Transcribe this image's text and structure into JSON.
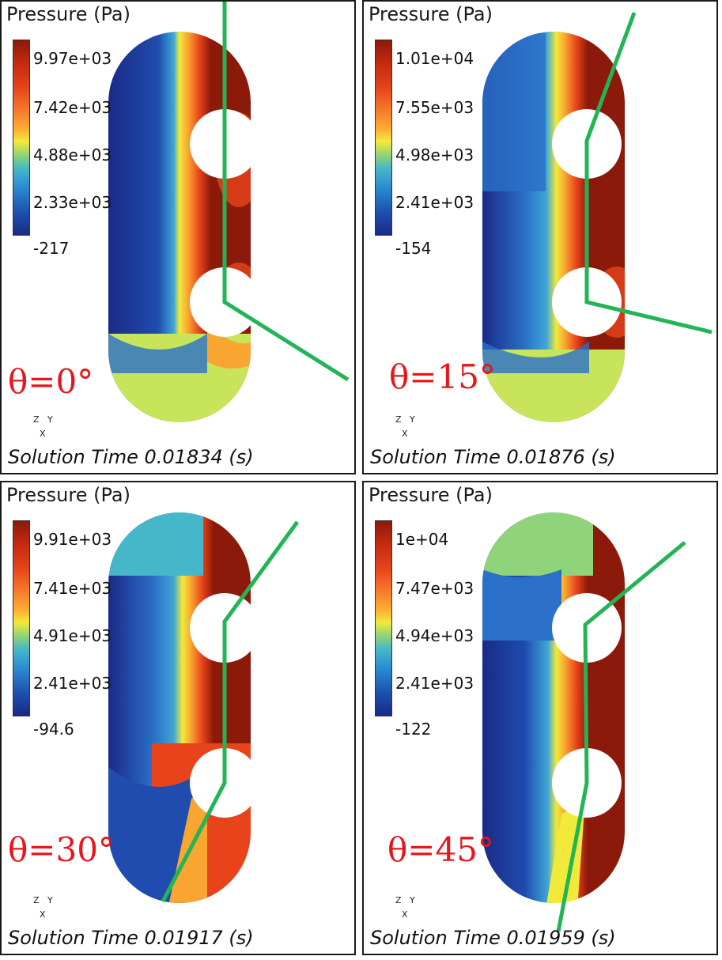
{
  "colors": {
    "dark_red": "#8b1a0a",
    "red": "#e4431b",
    "orange": "#f77a2a",
    "yellow": "#f2ea3a",
    "light_green": "#c7e45a",
    "cyan": "#45b7c8",
    "blue": "#2a6fc8",
    "navy": "#1a2a86",
    "section_line": "#22b455",
    "theta_label": "#e8151b"
  },
  "panels": [
    {
      "title": "Pressure (Pa)",
      "ticks": [
        "9.97e+03",
        "7.42e+03",
        "4.88e+03",
        "2.33e+03",
        "-217"
      ],
      "theta": "θ=0°",
      "time": "Solution Time 0.01834 (s)",
      "axis": {
        "z": "Z",
        "y": "Y",
        "x": "X"
      }
    },
    {
      "title": "Pressure (Pa)",
      "ticks": [
        "1.01e+04",
        "7.55e+03",
        "4.98e+03",
        "2.41e+03",
        "-154"
      ],
      "theta": "θ=15°",
      "time": "Solution Time 0.01876 (s)",
      "axis": {
        "z": "Z",
        "y": "Y",
        "x": "X"
      }
    },
    {
      "title": "Pressure (Pa)",
      "ticks": [
        "9.91e+03",
        "7.41e+03",
        "4.91e+03",
        "2.41e+03",
        "-94.6"
      ],
      "theta": "θ=30°",
      "time": "Solution Time 0.01917 (s)",
      "axis": {
        "z": "Z",
        "y": "Y",
        "x": "X"
      }
    },
    {
      "title": "Pressure (Pa)",
      "ticks": [
        "1e+04",
        "7.47e+03",
        "4.94e+03",
        "2.41e+03",
        "-122"
      ],
      "theta": "θ=45°",
      "time": "Solution Time 0.01959 (s)",
      "axis": {
        "z": "Z",
        "y": "Y",
        "x": "X"
      }
    }
  ]
}
